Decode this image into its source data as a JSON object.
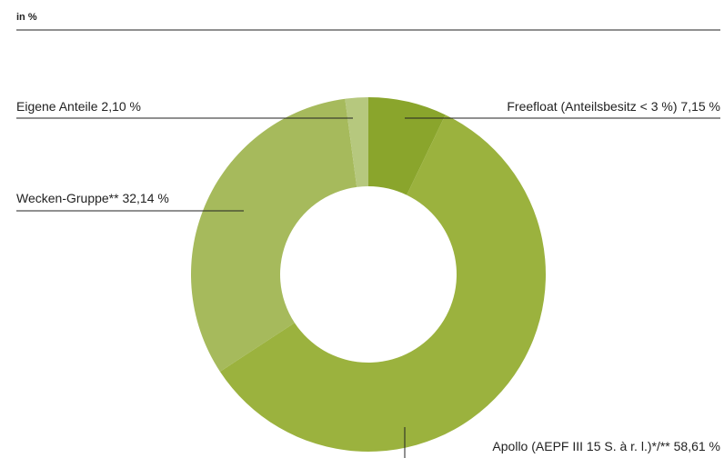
{
  "chart_data": {
    "type": "donut",
    "subtitle": "in %",
    "categories": [
      "Freefloat (Anteilsbesitz < 3 %)",
      "Apollo (AEPF III 15 S. à r. l.)*/**",
      "Wecken-Gruppe**",
      "Eigene Anteile"
    ],
    "values": [
      7.15,
      58.61,
      32.14,
      2.1
    ],
    "value_labels": [
      "7,15 %",
      "58,61 %",
      "32,14 %",
      "2,10 %"
    ],
    "colors": [
      "#8aa52c",
      "#9bb23e",
      "#a6ba5c",
      "#b6c87e"
    ]
  }
}
